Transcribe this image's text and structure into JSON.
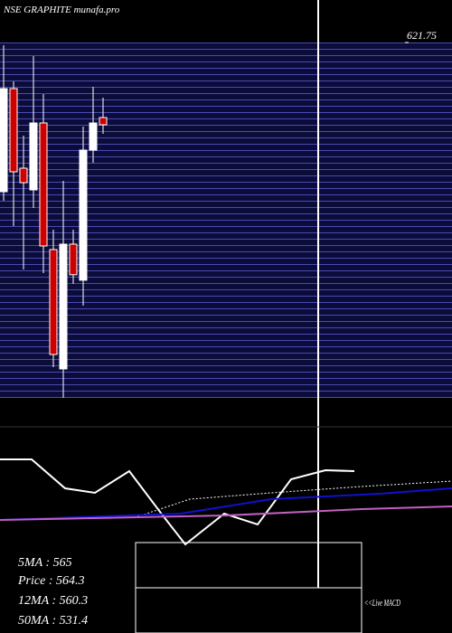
{
  "chart_data": {
    "type": "candlestick",
    "title": "NSE GRAPHITE munafa.pro",
    "open": [
      513.95,
      588.43,
      530.94,
      515.26,
      563.61,
      472.15,
      385.92,
      476.07,
      450.0,
      544.01,
      567.53
    ],
    "high": [
      619.79,
      593.66,
      554.46,
      611.95,
      584.51,
      486.52,
      521.79,
      486.52,
      561.0,
      589.74,
      581.9
    ],
    "low": [
      507.42,
      489.13,
      457.77,
      502.19,
      455.16,
      387.22,
      365.0,
      447.4,
      431.64,
      534.86,
      555.77
    ],
    "close": [
      588.43,
      528.33,
      520.49,
      563.61,
      474.76,
      396.37,
      476.07,
      453.97,
      544.0,
      563.61,
      562.3
    ],
    "up_color": "#ffffff",
    "down_color": "#cc0000",
    "ylim": [
      365,
      621.75
    ],
    "yticks": [
      621.75
    ],
    "annotations": [
      "5MA : 565",
      "Price : 564.3",
      "12MA : 560.3",
      "50MA : 531.4"
    ],
    "live_label": "<<Live MACD"
  }
}
